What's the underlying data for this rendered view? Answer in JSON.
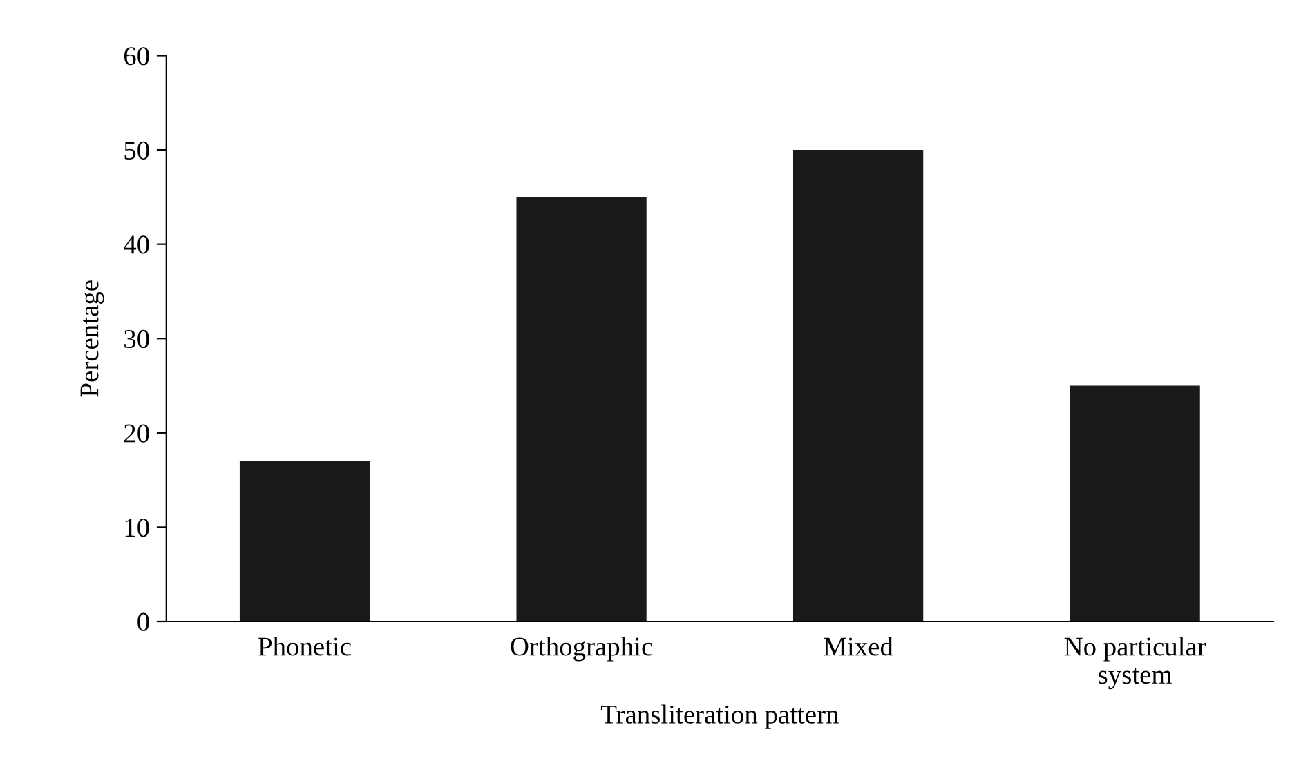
{
  "chart_data": {
    "type": "bar",
    "categories": [
      "Phonetic",
      "Orthographic",
      "Mixed",
      "No particular\nsystem"
    ],
    "values": [
      17,
      45,
      50,
      25
    ],
    "color": "#1a1a1a",
    "xlabel": "Transliteration pattern",
    "ylabel": "Percentage",
    "ylim": [
      0,
      60
    ],
    "yticks": [
      0,
      10,
      20,
      30,
      40,
      50,
      60
    ],
    "grid": false,
    "legend": false
  }
}
